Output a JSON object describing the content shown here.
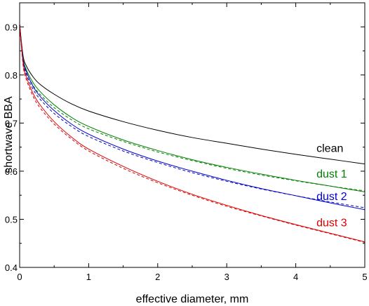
{
  "chart_data": {
    "type": "line",
    "title": "",
    "xlabel": "effective diameter, mm",
    "ylabel": "shortwave BBA",
    "xlim": [
      0,
      5
    ],
    "ylim": [
      0.4,
      0.95
    ],
    "xticks": [
      0,
      1,
      2,
      3,
      4,
      5
    ],
    "xtick_labels": [
      "0",
      "1",
      "2",
      "3",
      "4",
      "5"
    ],
    "yticks": [
      0.4,
      0.5,
      0.6,
      0.7,
      0.8,
      0.9
    ],
    "ytick_labels": [
      "0.4",
      "0.5",
      "0.6",
      "0.7",
      "0.8",
      "0.9"
    ],
    "grid": false,
    "legend": "none",
    "x": [
      0.0,
      0.05,
      0.1,
      0.2,
      0.3,
      0.5,
      0.75,
      1.0,
      1.5,
      2.0,
      2.5,
      3.0,
      3.5,
      4.0,
      4.5,
      5.0
    ],
    "series": [
      {
        "name": "clean",
        "color": "#000000",
        "style": "solid",
        "label_at": [
          4.3,
          0.64
        ],
        "values": [
          0.905,
          0.84,
          0.818,
          0.795,
          0.78,
          0.76,
          0.74,
          0.725,
          0.703,
          0.685,
          0.67,
          0.658,
          0.646,
          0.635,
          0.625,
          0.615
        ]
      },
      {
        "name": "dust 1",
        "color": "#008000",
        "style": "solid",
        "label_at": [
          4.3,
          0.587
        ],
        "values": [
          0.905,
          0.835,
          0.81,
          0.783,
          0.765,
          0.738,
          0.712,
          0.693,
          0.665,
          0.643,
          0.624,
          0.608,
          0.594,
          0.581,
          0.569,
          0.557
        ]
      },
      {
        "name": "",
        "color": "#008000",
        "style": "dashed",
        "values": [
          0.905,
          0.83,
          0.805,
          0.777,
          0.759,
          0.732,
          0.707,
          0.688,
          0.662,
          0.64,
          0.622,
          0.606,
          0.592,
          0.58,
          0.569,
          0.559
        ]
      },
      {
        "name": "dust 2",
        "color": "#0000cc",
        "style": "solid",
        "label_at": [
          4.3,
          0.54
        ],
        "values": [
          0.905,
          0.832,
          0.806,
          0.775,
          0.755,
          0.726,
          0.698,
          0.677,
          0.646,
          0.621,
          0.6,
          0.581,
          0.564,
          0.549,
          0.534,
          0.52
        ]
      },
      {
        "name": "",
        "color": "#0000cc",
        "style": "dashed",
        "values": [
          0.905,
          0.828,
          0.8,
          0.769,
          0.749,
          0.72,
          0.693,
          0.672,
          0.642,
          0.618,
          0.597,
          0.579,
          0.563,
          0.549,
          0.536,
          0.524
        ]
      },
      {
        "name": "dust 3",
        "color": "#dd0000",
        "style": "solid",
        "label_at": [
          4.3,
          0.485
        ],
        "values": [
          0.905,
          0.825,
          0.795,
          0.76,
          0.737,
          0.703,
          0.671,
          0.646,
          0.61,
          0.579,
          0.552,
          0.529,
          0.508,
          0.489,
          0.471,
          0.453
        ]
      },
      {
        "name": "",
        "color": "#dd0000",
        "style": "dashed",
        "values": [
          0.905,
          0.82,
          0.789,
          0.754,
          0.731,
          0.698,
          0.667,
          0.642,
          0.606,
          0.576,
          0.55,
          0.527,
          0.507,
          0.488,
          0.47,
          0.452
        ]
      }
    ]
  }
}
